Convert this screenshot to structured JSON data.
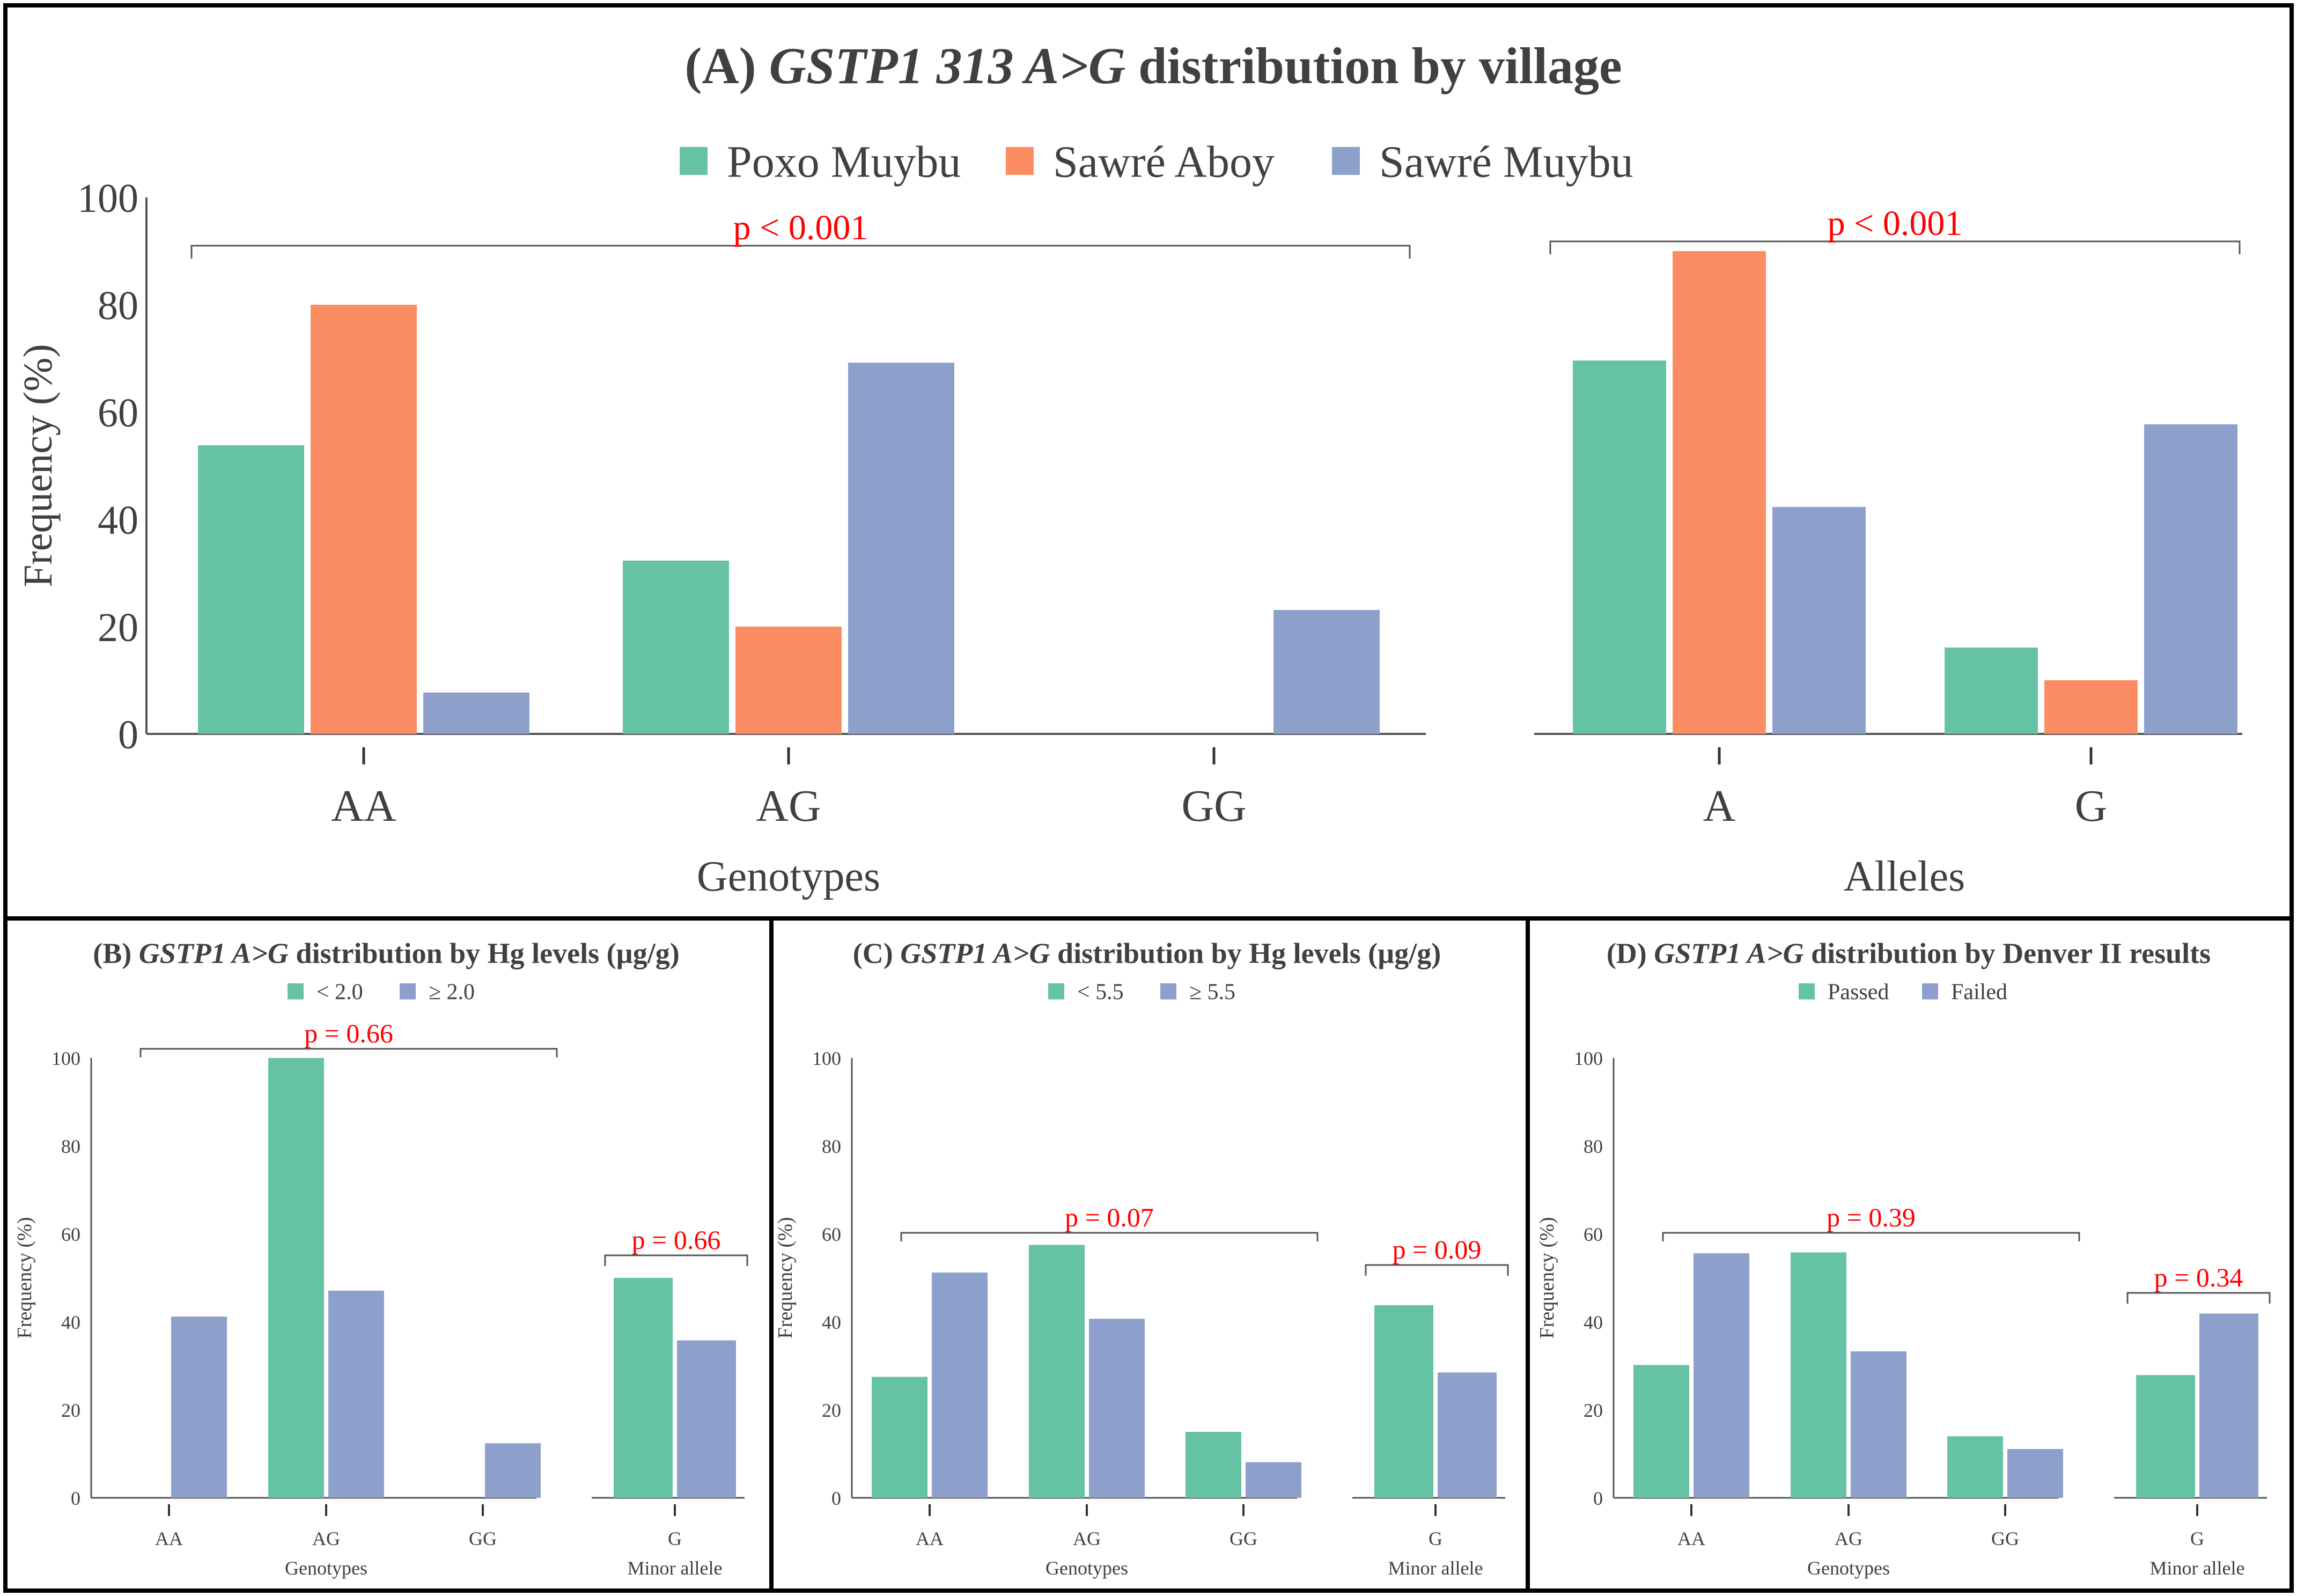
{
  "colors": {
    "poxo": "#66c2a5",
    "sawre_aboy": "#fc8d62",
    "sawre_muybu": "#8da0cb",
    "pvalue": "#ff0000",
    "axis": "#555555",
    "text": "#404040"
  },
  "chart_data": [
    {
      "id": "A",
      "type": "bar",
      "title": {
        "prefix": "(A) ",
        "gene": "GSTP1 313 A>G",
        "suffix": " distribution by village"
      },
      "legend": [
        "Poxo Muybu",
        "Sawré Aboy",
        "Sawré Muybu"
      ],
      "ylabel": "Frequency (%)",
      "ylim": [
        0,
        100
      ],
      "yticks": [
        "0",
        "20",
        "40",
        "60",
        "80",
        "100"
      ],
      "groups": [
        {
          "xlabel": "Genotypes",
          "categories": [
            "AA",
            "AG",
            "GG"
          ],
          "series": [
            {
              "name": "Poxo Muybu",
              "values": [
                53.8,
                32.3,
                0
              ]
            },
            {
              "name": "Sawré Aboy",
              "values": [
                80,
                20,
                0
              ]
            },
            {
              "name": "Sawré Muybu",
              "values": [
                7.7,
                69.2,
                23.1
              ]
            }
          ],
          "pvalue": "p < 0.001"
        },
        {
          "xlabel": "Alleles",
          "categories": [
            "A",
            "G"
          ],
          "series": [
            {
              "name": "Poxo Muybu",
              "values": [
                69.6,
                16.1
              ]
            },
            {
              "name": "Sawré Aboy",
              "values": [
                90,
                10
              ]
            },
            {
              "name": "Sawré Muybu",
              "values": [
                42.3,
                57.7
              ]
            }
          ],
          "pvalue": "p < 0.001"
        }
      ]
    },
    {
      "id": "B",
      "type": "bar",
      "title": {
        "prefix": "(B) ",
        "gene": "GSTP1 A>G",
        "suffix": " distribution by Hg levels (µg/g)"
      },
      "legend": [
        "< 2.0",
        "≥ 2.0"
      ],
      "ylabel": "Frequency (%)",
      "ylim": [
        0,
        100
      ],
      "yticks": [
        "0",
        "20",
        "40",
        "60",
        "80",
        "100"
      ],
      "genotypes": {
        "xlabel": "Genotypes",
        "categories": [
          "AA",
          "AG",
          "GG"
        ],
        "series": [
          {
            "name": "< 2.0",
            "values": [
              0,
              100,
              0
            ]
          },
          {
            "name": "≥ 2.0",
            "values": [
              41.2,
              47.1,
              12.4
            ]
          }
        ],
        "pvalue": "p = 0.66"
      },
      "allele": {
        "xlabel": "Minor allele",
        "categories": [
          "G"
        ],
        "series": [
          {
            "name": "< 2.0",
            "values": [
              50
            ]
          },
          {
            "name": "≥ 2.0",
            "values": [
              35.8
            ]
          }
        ],
        "pvalue": "p = 0.66"
      }
    },
    {
      "id": "C",
      "type": "bar",
      "title": {
        "prefix": "(C) ",
        "gene": "GSTP1 A>G",
        "suffix": " distribution by Hg levels (µg/g)"
      },
      "legend": [
        "< 5.5",
        "≥ 5.5"
      ],
      "ylabel": "Frequency (%)",
      "ylim": [
        0,
        100
      ],
      "yticks": [
        "0",
        "20",
        "40",
        "60",
        "80",
        "100"
      ],
      "genotypes": {
        "xlabel": "Genotypes",
        "categories": [
          "AA",
          "AG",
          "GG"
        ],
        "series": [
          {
            "name": "< 5.5",
            "values": [
              27.5,
              57.5,
              15
            ]
          },
          {
            "name": "≥ 5.5",
            "values": [
              51.2,
              40.7,
              8.1
            ]
          }
        ],
        "pvalue": "p = 0.07"
      },
      "allele": {
        "xlabel": "Minor allele",
        "categories": [
          "G"
        ],
        "series": [
          {
            "name": "< 5.5",
            "values": [
              43.8
            ]
          },
          {
            "name": "≥ 5.5",
            "values": [
              28.5
            ]
          }
        ],
        "pvalue": "p = 0.09"
      }
    },
    {
      "id": "D",
      "type": "bar",
      "title": {
        "prefix": "(D) ",
        "gene": "GSTP1 A>G",
        "suffix": " distribution by Denver II results"
      },
      "legend": [
        "Passed",
        "Failed"
      ],
      "ylabel": "Frequency (%)",
      "ylim": [
        0,
        100
      ],
      "yticks": [
        "0",
        "20",
        "40",
        "60",
        "80",
        "100"
      ],
      "genotypes": {
        "xlabel": "Genotypes",
        "categories": [
          "AA",
          "AG",
          "GG"
        ],
        "series": [
          {
            "name": "Passed",
            "values": [
              30.2,
              55.8,
              14
            ]
          },
          {
            "name": "Failed",
            "values": [
              55.6,
              33.3,
              11.1
            ]
          }
        ],
        "pvalue": "p = 0.39"
      },
      "allele": {
        "xlabel": "Minor allele",
        "categories": [
          "G"
        ],
        "series": [
          {
            "name": "Passed",
            "values": [
              27.9
            ]
          },
          {
            "name": "Failed",
            "values": [
              41.9
            ]
          }
        ],
        "pvalue": "p = 0.34"
      }
    }
  ]
}
